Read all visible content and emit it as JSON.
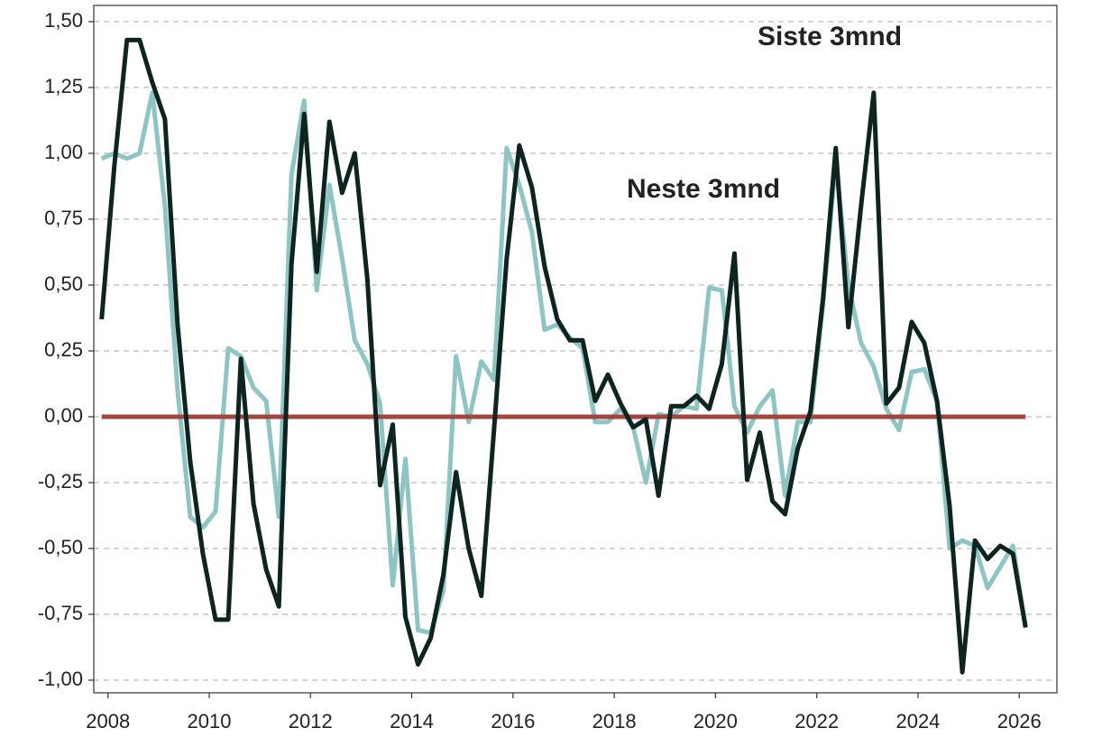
{
  "chart_data": {
    "type": "line",
    "x": [
      2007.875,
      2008.125,
      2008.375,
      2008.625,
      2008.875,
      2009.125,
      2009.375,
      2009.625,
      2009.875,
      2010.125,
      2010.375,
      2010.625,
      2010.875,
      2011.125,
      2011.375,
      2011.625,
      2011.875,
      2012.125,
      2012.375,
      2012.625,
      2012.875,
      2013.125,
      2013.375,
      2013.625,
      2013.875,
      2014.125,
      2014.375,
      2014.625,
      2014.875,
      2015.125,
      2015.375,
      2015.625,
      2015.875,
      2016.125,
      2016.375,
      2016.625,
      2016.875,
      2017.125,
      2017.375,
      2017.625,
      2017.875,
      2018.125,
      2018.375,
      2018.625,
      2018.875,
      2019.125,
      2019.375,
      2019.625,
      2019.875,
      2020.125,
      2020.375,
      2020.625,
      2020.875,
      2021.125,
      2021.375,
      2021.625,
      2021.875,
      2022.125,
      2022.375,
      2022.625,
      2022.875,
      2023.125,
      2023.375,
      2023.625,
      2023.875,
      2024.125,
      2024.375,
      2024.625,
      2024.875,
      2025.125,
      2025.375,
      2025.625,
      2025.875,
      2026.125
    ],
    "series": [
      {
        "name": "Siste 3mnd",
        "color": "#0d2420",
        "values": [
          0.37,
          0.95,
          1.43,
          1.43,
          1.27,
          1.13,
          0.35,
          -0.17,
          -0.52,
          -0.77,
          -0.77,
          0.22,
          -0.33,
          -0.58,
          -0.72,
          0.58,
          1.15,
          0.55,
          1.12,
          0.85,
          1.0,
          0.52,
          -0.26,
          -0.03,
          -0.76,
          -0.94,
          -0.84,
          -0.6,
          -0.21,
          -0.5,
          -0.68,
          -0.05,
          0.6,
          1.03,
          0.87,
          0.57,
          0.37,
          0.29,
          0.29,
          0.06,
          0.16,
          0.05,
          -0.04,
          -0.01,
          -0.3,
          0.04,
          0.04,
          0.08,
          0.03,
          0.2,
          0.62,
          -0.24,
          -0.06,
          -0.32,
          -0.37,
          -0.12,
          0.02,
          0.45,
          1.02,
          0.34,
          0.8,
          1.23,
          0.05,
          0.11,
          0.36,
          0.28,
          0.06,
          -0.34,
          -0.97,
          -0.47,
          -0.54,
          -0.49,
          -0.52,
          -0.8
        ]
      },
      {
        "name": "Neste 3mnd",
        "color": "#8fc4c4",
        "values": [
          0.98,
          1.0,
          0.98,
          1.0,
          1.23,
          0.8,
          0.1,
          -0.38,
          -0.42,
          -0.36,
          0.26,
          0.23,
          0.11,
          0.06,
          -0.38,
          0.92,
          1.2,
          0.48,
          0.88,
          0.6,
          0.29,
          0.2,
          0.05,
          -0.64,
          -0.16,
          -0.81,
          -0.82,
          -0.66,
          0.23,
          -0.02,
          0.21,
          0.14,
          1.02,
          0.88,
          0.7,
          0.33,
          0.35,
          0.3,
          0.26,
          -0.02,
          -0.02,
          0.03,
          -0.04,
          -0.25,
          0.01,
          0,
          0.04,
          0.03,
          0.49,
          0.48,
          0.04,
          -0.06,
          0.04,
          0.1,
          -0.3,
          -0.02,
          -0.02,
          0.43,
          0.97,
          0.5,
          0.28,
          0.19,
          0.03,
          -0.05,
          0.17,
          0.18,
          0.06,
          -0.5,
          -0.47,
          -0.49,
          -0.65,
          -0.57,
          -0.49,
          -0.8
        ]
      }
    ],
    "hline": {
      "value": 0,
      "color": "#a0463f"
    },
    "xlim": [
      2007.72,
      2026.744
    ],
    "xticks": [
      2008,
      2010,
      2012,
      2014,
      2016,
      2018,
      2020,
      2022,
      2024,
      2026
    ],
    "ylim": [
      -1.048,
      1.5616
    ],
    "yticks": [
      {
        "value": 1.5,
        "label": "1,50"
      },
      {
        "value": 1.25,
        "label": "1,25"
      },
      {
        "value": 1.0,
        "label": "1,00"
      },
      {
        "value": 0.75,
        "label": "0,75"
      },
      {
        "value": 0.5,
        "label": "0,50"
      },
      {
        "value": 0.25,
        "label": "0,25"
      },
      {
        "value": 0,
        "label": "0,00"
      },
      {
        "value": -0.25,
        "label": "-0,25"
      },
      {
        "value": -0.5,
        "label": "-0,50"
      },
      {
        "value": -0.75,
        "label": "-0,75"
      },
      {
        "value": -1.0,
        "label": "-1,00"
      }
    ],
    "grid": true
  }
}
